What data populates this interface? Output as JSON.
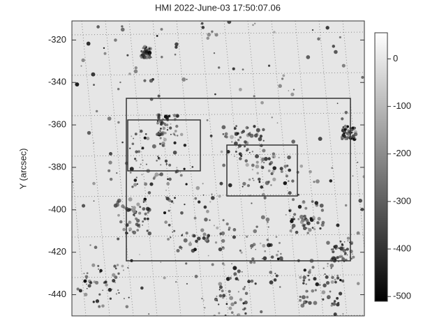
{
  "chart_data": {
    "type": "image",
    "title": "HMI 2022-June-03 17:50:07.06",
    "y_label": "Y (arcsec)",
    "ylim": [
      -450,
      -311
    ],
    "yticks": [
      -320,
      -340,
      -360,
      -380,
      -400,
      -420,
      -440
    ],
    "colorbar": {
      "lim": [
        -510,
        55
      ],
      "ticks": [
        0,
        -100,
        -200,
        -300,
        -400,
        -500
      ]
    },
    "colormap": "gray"
  }
}
